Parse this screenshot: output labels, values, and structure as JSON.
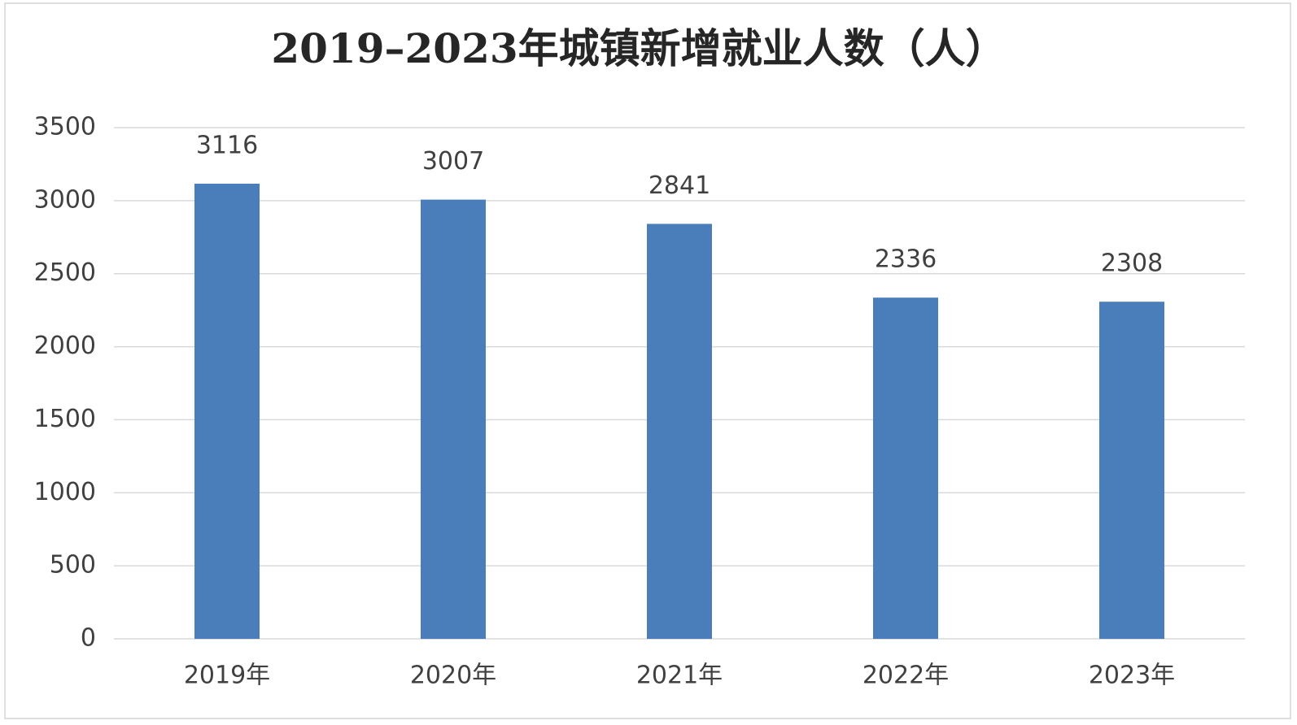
{
  "chart_data": {
    "type": "bar",
    "title": "2019–2023年城镇新增就业人数（人）",
    "categories": [
      "2019年",
      "2020年",
      "2021年",
      "2022年",
      "2023年"
    ],
    "values": [
      3116,
      3007,
      2841,
      2336,
      2308
    ],
    "color": "#4a7ebb",
    "ylim": [
      0,
      3500
    ],
    "yticks": [
      0,
      500,
      1000,
      1500,
      2000,
      2500,
      3000,
      3500
    ],
    "grid": true
  }
}
